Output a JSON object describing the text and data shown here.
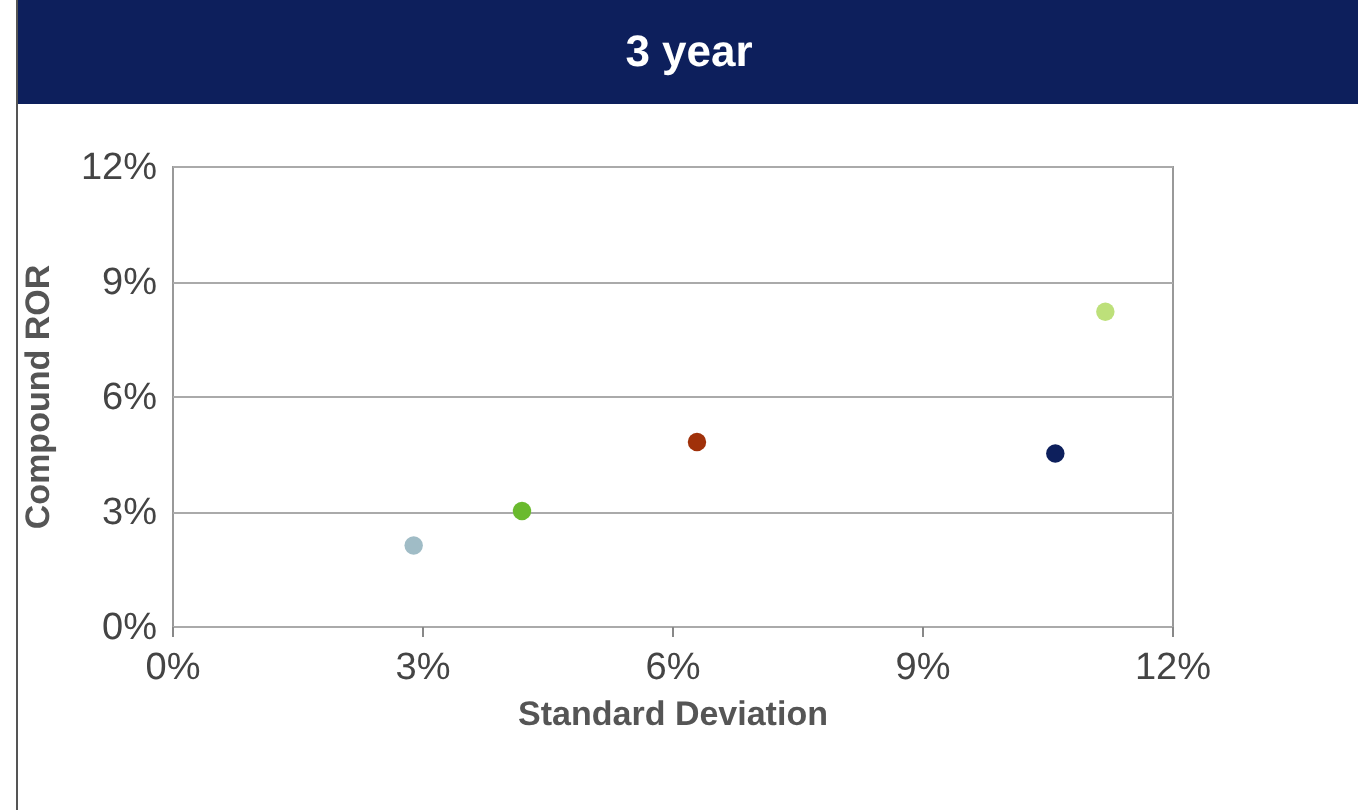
{
  "chart_data": {
    "type": "scatter",
    "title": "3 year",
    "xlabel": "Standard Deviation",
    "ylabel": "Compound ROR",
    "x": [
      2.9,
      4.2,
      6.3,
      10.6,
      11.2
    ],
    "values": [
      2.1,
      3.0,
      4.8,
      4.5,
      8.2
    ],
    "colors": [
      "#a0bcc6",
      "#6aba2e",
      "#a0310a",
      "#0d1f5c",
      "#bde07a"
    ],
    "xlim": [
      0,
      12
    ],
    "xticks": [
      {
        "value": 0,
        "label": "0%"
      },
      {
        "value": 3,
        "label": "3%"
      },
      {
        "value": 6,
        "label": "6%"
      },
      {
        "value": 9,
        "label": "9%"
      },
      {
        "value": 12,
        "label": "12%"
      }
    ],
    "ylim": [
      0,
      12
    ],
    "yticks": [
      {
        "value": 0,
        "label": "0%"
      },
      {
        "value": 3,
        "label": "3%"
      },
      {
        "value": 6,
        "label": "6%"
      },
      {
        "value": 9,
        "label": "9%"
      },
      {
        "value": 12,
        "label": "12%"
      }
    ],
    "grid": "y",
    "marker": "circle"
  }
}
